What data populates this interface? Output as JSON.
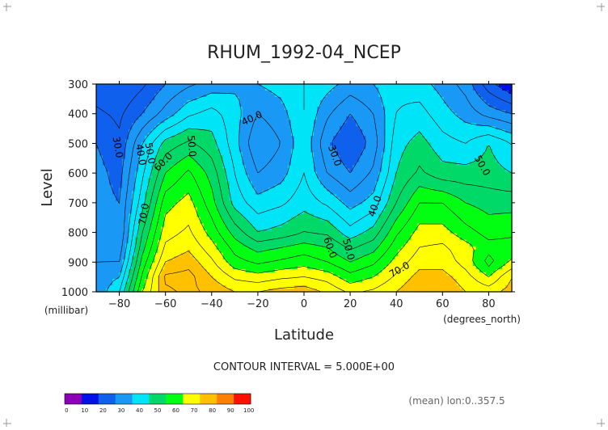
{
  "chart_data": {
    "type": "heatmap",
    "title": "RHUM_1992-04_NCEP",
    "xlabel": "Latitude",
    "ylabel": "Level",
    "x_units": "(degrees_north)",
    "y_units": "(millibar)",
    "x_ticks": [
      -80,
      -60,
      -40,
      -20,
      0,
      20,
      40,
      60,
      80
    ],
    "y_ticks": [
      300,
      400,
      500,
      600,
      700,
      800,
      900,
      1000
    ],
    "xlim": [
      -90,
      90
    ],
    "ylim": [
      1000,
      300
    ],
    "contour_interval_label": "CONTOUR INTERVAL = 5.000E+00",
    "mean_label": "(mean) lon:0..357.5",
    "contour_labels": [
      "40.0",
      "50.0",
      "30.0",
      "40.0",
      "50.0",
      "60.0",
      "70.0",
      "30.0",
      "40.0",
      "50.0",
      "60.0",
      "70.0",
      "50.0"
    ],
    "colorbar": {
      "ticks": [
        0,
        10,
        20,
        30,
        40,
        50,
        60,
        70,
        80,
        90,
        100
      ],
      "colors": [
        "#8b00b8",
        "#0010e8",
        "#1060ee",
        "#1a98f5",
        "#00e4f8",
        "#00d868",
        "#00ff10",
        "#ffff00",
        "#ffc000",
        "#ff8000",
        "#ff1000"
      ]
    },
    "levels": [
      300,
      400,
      500,
      600,
      700,
      800,
      850,
      900,
      950,
      1000
    ],
    "latitudes": [
      -90,
      -80,
      -70,
      -60,
      -50,
      -40,
      -30,
      -20,
      -10,
      0,
      10,
      20,
      30,
      40,
      50,
      60,
      70,
      80,
      90
    ],
    "values": [
      [
        22,
        20,
        24,
        30,
        34,
        37,
        39,
        40,
        42,
        45,
        42,
        38,
        40,
        44,
        42,
        38,
        33,
        22,
        15
      ],
      [
        26,
        24,
        30,
        37,
        44,
        47,
        42,
        35,
        38,
        45,
        36,
        30,
        35,
        45,
        47,
        42,
        38,
        33,
        30
      ],
      [
        30,
        26,
        40,
        52,
        56,
        52,
        42,
        30,
        35,
        44,
        31,
        25,
        32,
        48,
        52,
        47,
        45,
        50,
        45
      ],
      [
        32,
        28,
        44,
        60,
        66,
        58,
        45,
        35,
        38,
        45,
        35,
        30,
        36,
        50,
        56,
        52,
        52,
        52,
        50
      ],
      [
        32,
        30,
        48,
        68,
        72,
        62,
        48,
        42,
        44,
        48,
        44,
        38,
        42,
        55,
        65,
        65,
        60,
        58,
        58
      ],
      [
        33,
        30,
        55,
        73,
        76,
        68,
        58,
        50,
        52,
        55,
        54,
        47,
        52,
        64,
        72,
        72,
        67,
        63,
        64
      ],
      [
        34,
        32,
        58,
        76,
        79,
        72,
        63,
        58,
        60,
        62,
        60,
        54,
        58,
        68,
        75,
        76,
        72,
        67,
        67
      ],
      [
        35,
        35,
        62,
        80,
        83,
        76,
        67,
        64,
        66,
        68,
        65,
        60,
        64,
        72,
        78,
        78,
        73,
        63,
        71
      ],
      [
        36,
        40,
        66,
        86,
        87,
        80,
        74,
        72,
        74,
        75,
        73,
        67,
        70,
        76,
        82,
        82,
        77,
        70,
        80
      ],
      [
        36,
        45,
        70,
        84,
        86,
        84,
        80,
        80,
        82,
        83,
        79,
        74,
        76,
        80,
        85,
        85,
        80,
        78,
        82
      ]
    ]
  }
}
